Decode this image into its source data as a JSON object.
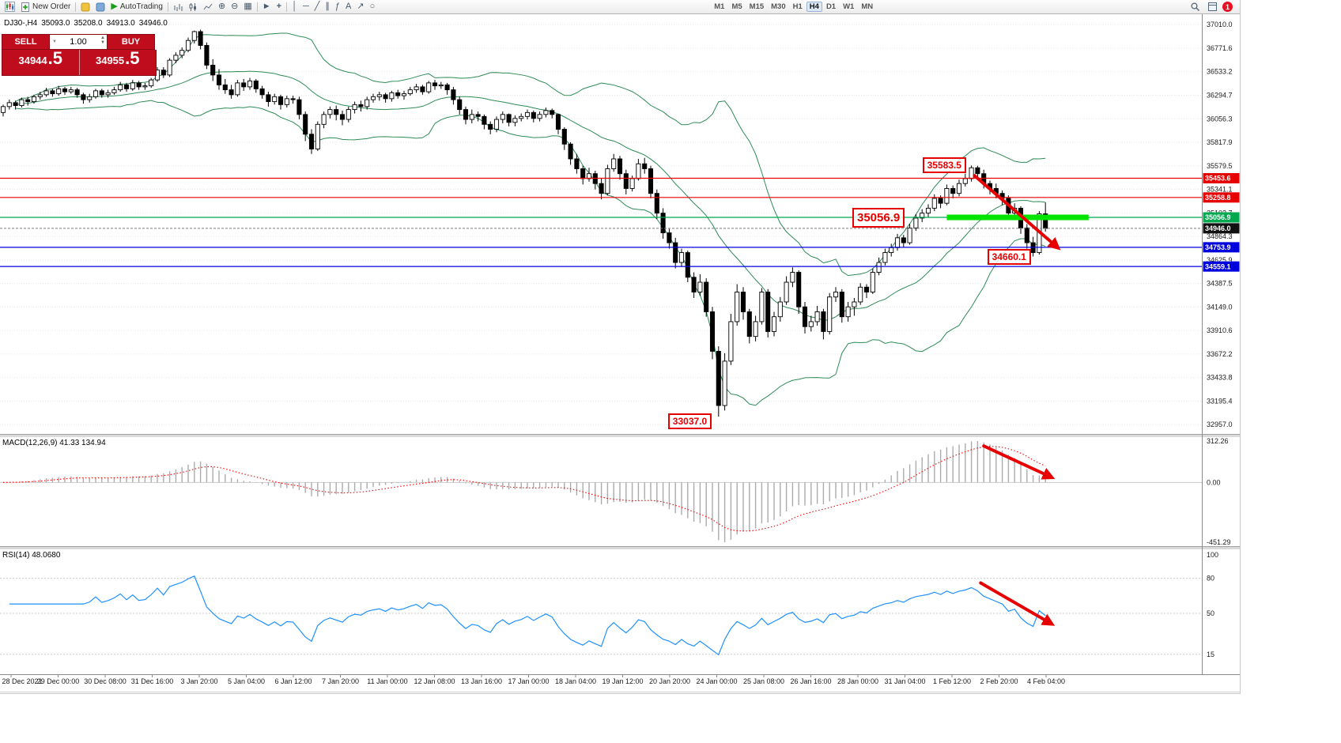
{
  "icons": {
    "autotrading": "▶",
    "zoom_in": "⊕",
    "zoom_out": "⊖",
    "tile_windows": "▦",
    "cursor": "►",
    "crosshair": "+",
    "vertical_line": "│",
    "horizontal_line": "─",
    "trendline": "╱",
    "channel": "∥",
    "fibonacci": "ƒ",
    "text_tool": "A",
    "arrow_tool": "↗",
    "shapes": "○",
    "volume_up": "▲",
    "volume_down": "▼",
    "dropdown": "▼"
  },
  "toolbar": {
    "new_order": "New Order",
    "autotrading": "AutoTrading",
    "timeframes": [
      "M1",
      "M5",
      "M15",
      "M30",
      "H1",
      "H4",
      "D1",
      "W1",
      "MN"
    ],
    "active_timeframe": "H4",
    "notification_badge": "1"
  },
  "header": {
    "symbol_period": "DJ30-,H4",
    "open": "35093.0",
    "high": "35208.0",
    "low": "34913.0",
    "close": "34946.0"
  },
  "one_click": {
    "sell_label": "SELL",
    "buy_label": "BUY",
    "volume": "1.00",
    "sell_price_main": "34944",
    "sell_price_frac": ".5",
    "buy_price_main": "34955",
    "buy_price_frac": ".5"
  },
  "chart_data": {
    "type": "candlestick",
    "symbol": "DJ30-",
    "timeframe": "H4",
    "price_axis": {
      "ylim": [
        32870,
        37100
      ],
      "labels": [
        "37010.0",
        "36771.6",
        "36533.2",
        "36294.7",
        "36056.3",
        "35817.9",
        "35579.5",
        "35341.1",
        "35102.7",
        "34864.3",
        "34625.9",
        "34387.5",
        "34149.0",
        "33910.6",
        "33672.2",
        "33433.8",
        "33195.4",
        "32957.0"
      ]
    },
    "time_axis": [
      "28 Dec 2021",
      "29 Dec 00:00",
      "30 Dec 08:00",
      "31 Dec 16:00",
      "3 Jan 20:00",
      "5 Jan 04:00",
      "6 Jan 12:00",
      "7 Jan 20:00",
      "11 Jan 00:00",
      "12 Jan 08:00",
      "13 Jan 16:00",
      "17 Jan 00:00",
      "18 Jan 04:00",
      "19 Jan 12:00",
      "20 Jan 20:00",
      "24 Jan 00:00",
      "25 Jan 08:00",
      "26 Jan 16:00",
      "28 Jan 00:00",
      "31 Jan 04:00",
      "1 Feb 12:00",
      "2 Feb 20:00",
      "4 Feb 04:00"
    ],
    "candles": [
      [
        36120,
        36200,
        36080,
        36180
      ],
      [
        36180,
        36250,
        36150,
        36220
      ],
      [
        36220,
        36240,
        36150,
        36190
      ],
      [
        36190,
        36270,
        36170,
        36250
      ],
      [
        36250,
        36280,
        36190,
        36230
      ],
      [
        36230,
        36300,
        36210,
        36280
      ],
      [
        36280,
        36330,
        36250,
        36300
      ],
      [
        36300,
        36370,
        36280,
        36340
      ],
      [
        36340,
        36360,
        36280,
        36310
      ],
      [
        36310,
        36390,
        36290,
        36360
      ],
      [
        36360,
        36380,
        36300,
        36330
      ],
      [
        36330,
        36380,
        36310,
        36350
      ],
      [
        36350,
        36370,
        36270,
        36300
      ],
      [
        36300,
        36320,
        36210,
        36250
      ],
      [
        36250,
        36310,
        36220,
        36280
      ],
      [
        36280,
        36360,
        36260,
        36340
      ],
      [
        36340,
        36360,
        36270,
        36300
      ],
      [
        36300,
        36350,
        36270,
        36320
      ],
      [
        36320,
        36380,
        36300,
        36350
      ],
      [
        36350,
        36430,
        36330,
        36400
      ],
      [
        36400,
        36420,
        36330,
        36360
      ],
      [
        36360,
        36450,
        36340,
        36420
      ],
      [
        36420,
        36440,
        36350,
        36380
      ],
      [
        36380,
        36420,
        36350,
        36390
      ],
      [
        36390,
        36470,
        36370,
        36450
      ],
      [
        36450,
        36580,
        36430,
        36550
      ],
      [
        36550,
        36580,
        36470,
        36500
      ],
      [
        36500,
        36670,
        36480,
        36650
      ],
      [
        36650,
        36730,
        36620,
        36700
      ],
      [
        36700,
        36780,
        36670,
        36750
      ],
      [
        36750,
        36880,
        36730,
        36850
      ],
      [
        36850,
        36950,
        36820,
        36940
      ],
      [
        36940,
        36960,
        36760,
        36800
      ],
      [
        36800,
        36830,
        36560,
        36600
      ],
      [
        36600,
        36660,
        36440,
        36500
      ],
      [
        36500,
        36560,
        36350,
        36400
      ],
      [
        36400,
        36460,
        36310,
        36350
      ],
      [
        36350,
        36400,
        36260,
        36300
      ],
      [
        36300,
        36450,
        36280,
        36420
      ],
      [
        36420,
        36460,
        36340,
        36380
      ],
      [
        36380,
        36470,
        36350,
        36440
      ],
      [
        36440,
        36460,
        36320,
        36360
      ],
      [
        36360,
        36390,
        36260,
        36300
      ],
      [
        36300,
        36330,
        36180,
        36230
      ],
      [
        36230,
        36310,
        36200,
        36280
      ],
      [
        36280,
        36300,
        36150,
        36200
      ],
      [
        36200,
        36290,
        36170,
        36260
      ],
      [
        36260,
        36290,
        36210,
        36250
      ],
      [
        36250,
        36280,
        36050,
        36100
      ],
      [
        36100,
        36130,
        35830,
        35900
      ],
      [
        35900,
        35950,
        35700,
        35750
      ],
      [
        35750,
        36030,
        35730,
        36000
      ],
      [
        36000,
        36130,
        35960,
        36100
      ],
      [
        36100,
        36180,
        36060,
        36150
      ],
      [
        36150,
        36190,
        36040,
        36100
      ],
      [
        36100,
        36140,
        35990,
        36050
      ],
      [
        36050,
        36180,
        36020,
        36150
      ],
      [
        36150,
        36230,
        36110,
        36200
      ],
      [
        36200,
        36240,
        36130,
        36180
      ],
      [
        36180,
        36280,
        36150,
        36250
      ],
      [
        36250,
        36310,
        36220,
        36280
      ],
      [
        36280,
        36330,
        36240,
        36300
      ],
      [
        36300,
        36320,
        36220,
        36260
      ],
      [
        36260,
        36340,
        36230,
        36320
      ],
      [
        36320,
        36350,
        36260,
        36290
      ],
      [
        36290,
        36340,
        36250,
        36310
      ],
      [
        36310,
        36380,
        36290,
        36350
      ],
      [
        36350,
        36410,
        36320,
        36380
      ],
      [
        36380,
        36400,
        36300,
        36330
      ],
      [
        36330,
        36440,
        36310,
        36420
      ],
      [
        36420,
        36450,
        36350,
        36390
      ],
      [
        36390,
        36430,
        36360,
        36400
      ],
      [
        36400,
        36420,
        36300,
        36350
      ],
      [
        36350,
        36380,
        36200,
        36250
      ],
      [
        36250,
        36280,
        36100,
        36150
      ],
      [
        36150,
        36180,
        36000,
        36050
      ],
      [
        36050,
        36150,
        36010,
        36100
      ],
      [
        36100,
        36130,
        36030,
        36080
      ],
      [
        36080,
        36100,
        35950,
        36000
      ],
      [
        36000,
        36030,
        35900,
        35950
      ],
      [
        35950,
        36080,
        35920,
        36050
      ],
      [
        36050,
        36130,
        36010,
        36100
      ],
      [
        36100,
        36110,
        35980,
        36020
      ],
      [
        36020,
        36090,
        35980,
        36060
      ],
      [
        36060,
        36110,
        36030,
        36080
      ],
      [
        36080,
        36150,
        36050,
        36120
      ],
      [
        36120,
        36140,
        36020,
        36060
      ],
      [
        36060,
        36130,
        36030,
        36100
      ],
      [
        36100,
        36170,
        36070,
        36140
      ],
      [
        36140,
        36160,
        36060,
        36100
      ],
      [
        36100,
        36110,
        35900,
        35950
      ],
      [
        35950,
        35970,
        35740,
        35800
      ],
      [
        35800,
        35820,
        35590,
        35650
      ],
      [
        35650,
        35700,
        35500,
        35550
      ],
      [
        35550,
        35580,
        35390,
        35450
      ],
      [
        35450,
        35560,
        35420,
        35500
      ],
      [
        35500,
        35530,
        35340,
        35400
      ],
      [
        35400,
        35450,
        35240,
        35300
      ],
      [
        35300,
        35590,
        35280,
        35550
      ],
      [
        35550,
        35700,
        35520,
        35650
      ],
      [
        35650,
        35680,
        35440,
        35500
      ],
      [
        35500,
        35540,
        35290,
        35350
      ],
      [
        35350,
        35480,
        35320,
        35450
      ],
      [
        35450,
        35650,
        35430,
        35600
      ],
      [
        35600,
        35660,
        35500,
        35550
      ],
      [
        35550,
        35580,
        35250,
        35300
      ],
      [
        35300,
        35340,
        35040,
        35100
      ],
      [
        35100,
        35150,
        34840,
        34900
      ],
      [
        34900,
        34940,
        34740,
        34800
      ],
      [
        34800,
        34850,
        34540,
        34600
      ],
      [
        34600,
        34740,
        34560,
        34700
      ],
      [
        34700,
        34720,
        34400,
        34450
      ],
      [
        34450,
        34500,
        34240,
        34300
      ],
      [
        34300,
        34480,
        34260,
        34400
      ],
      [
        34400,
        34440,
        34050,
        34100
      ],
      [
        34100,
        34150,
        33620,
        33700
      ],
      [
        33700,
        33750,
        33037,
        33150
      ],
      [
        33150,
        33680,
        33100,
        33600
      ],
      [
        33600,
        34080,
        33560,
        34000
      ],
      [
        34000,
        34380,
        33960,
        34300
      ],
      [
        34300,
        34350,
        34020,
        34100
      ],
      [
        34100,
        34130,
        33780,
        33850
      ],
      [
        33850,
        34060,
        33800,
        34000
      ],
      [
        34000,
        34340,
        33970,
        34300
      ],
      [
        34300,
        34330,
        33840,
        33900
      ],
      [
        33900,
        34100,
        33850,
        34050
      ],
      [
        34050,
        34250,
        34000,
        34200
      ],
      [
        34200,
        34460,
        34170,
        34400
      ],
      [
        34400,
        34550,
        34350,
        34500
      ],
      [
        34500,
        34520,
        34080,
        34150
      ],
      [
        34150,
        34200,
        33880,
        33950
      ],
      [
        33950,
        34060,
        33900,
        34000
      ],
      [
        34000,
        34160,
        33960,
        34100
      ],
      [
        34100,
        34130,
        33820,
        33900
      ],
      [
        33900,
        34290,
        33870,
        34250
      ],
      [
        34250,
        34350,
        34200,
        34300
      ],
      [
        34300,
        34330,
        33990,
        34050
      ],
      [
        34050,
        34200,
        34000,
        34150
      ],
      [
        34150,
        34240,
        34060,
        34200
      ],
      [
        34200,
        34390,
        34170,
        34350
      ],
      [
        34350,
        34380,
        34240,
        34300
      ],
      [
        34300,
        34540,
        34280,
        34500
      ],
      [
        34500,
        34650,
        34470,
        34600
      ],
      [
        34600,
        34740,
        34570,
        34700
      ],
      [
        34700,
        34790,
        34660,
        34750
      ],
      [
        34750,
        34890,
        34720,
        34850
      ],
      [
        34850,
        34880,
        34750,
        34800
      ],
      [
        34800,
        34990,
        34780,
        34950
      ],
      [
        34950,
        35090,
        34920,
        35050
      ],
      [
        35050,
        35140,
        35010,
        35100
      ],
      [
        35100,
        35190,
        35060,
        35150
      ],
      [
        35150,
        35290,
        35120,
        35250
      ],
      [
        35250,
        35280,
        35150,
        35200
      ],
      [
        35200,
        35390,
        35180,
        35350
      ],
      [
        35350,
        35380,
        35250,
        35300
      ],
      [
        35300,
        35440,
        35270,
        35400
      ],
      [
        35400,
        35500,
        35370,
        35450
      ],
      [
        35450,
        35583.5,
        35420,
        35560
      ],
      [
        35560,
        35580,
        35450,
        35500
      ],
      [
        35500,
        35540,
        35350,
        35400
      ],
      [
        35400,
        35430,
        35290,
        35350
      ],
      [
        35350,
        35400,
        35250,
        35300
      ],
      [
        35300,
        35330,
        35180,
        35250
      ],
      [
        35250,
        35280,
        35040,
        35100
      ],
      [
        35100,
        35200,
        35060,
        35150
      ],
      [
        35150,
        35170,
        34890,
        34950
      ],
      [
        34950,
        34990,
        34740,
        34800
      ],
      [
        34800,
        34860,
        34660,
        34700
      ],
      [
        34700,
        35120,
        34680,
        35093
      ],
      [
        35093,
        35208,
        34913,
        34946
      ]
    ],
    "overlays": {
      "bollinger": {
        "period": 20,
        "deviation": 2,
        "color": "#2e8b57"
      },
      "hlines": [
        {
          "price": 35453.6,
          "color": "#e60000"
        },
        {
          "price": 35258.8,
          "color": "#e60000"
        },
        {
          "price": 35056.9,
          "color": "#00a84f"
        },
        {
          "price": 34753.9,
          "color": "#0000dd"
        },
        {
          "price": 34559.1,
          "color": "#0000dd"
        }
      ],
      "current_price": {
        "value": 34946.0,
        "color": "#111111"
      },
      "green_zone": {
        "price": 35056.9,
        "from_candle": 153,
        "to_candle": 176,
        "color": "#00e400"
      }
    },
    "annotations": {
      "labels": [
        {
          "text": "35583.5",
          "price": 35583.5
        },
        {
          "text": "35056.9",
          "price": 35056.9
        },
        {
          "text": "34660.1",
          "price": 34660.1
        },
        {
          "text": "33037.0",
          "price": 33037.0
        }
      ],
      "arrows": [
        {
          "panel": "price",
          "from": {
            "i": 157.5,
            "v": 35480
          },
          "to": {
            "i": 171,
            "v": 34750
          }
        },
        {
          "panel": "macd",
          "from": {
            "i": 159,
            "v": 275
          },
          "to": {
            "i": 170,
            "v": 38
          }
        },
        {
          "panel": "rsi",
          "from": {
            "i": 158.5,
            "v": 76
          },
          "to": {
            "i": 170,
            "v": 41
          }
        }
      ]
    },
    "macd": {
      "label": "MACD(12,26,9) 41.33 134.94",
      "params": [
        12,
        26,
        9
      ],
      "ticks": [
        "312.26",
        "0.00",
        "-451.29"
      ],
      "tick_values": [
        312.26,
        0,
        -451.29
      ]
    },
    "rsi": {
      "label": "RSI(14) 48.0680",
      "period": 14,
      "levels": [
        80,
        50,
        15
      ],
      "ticks": [
        {
          "t": "100",
          "v": 100
        },
        {
          "t": "80",
          "v": 80
        },
        {
          "t": "50",
          "v": 50
        },
        {
          "t": "15",
          "v": 15
        }
      ]
    }
  }
}
